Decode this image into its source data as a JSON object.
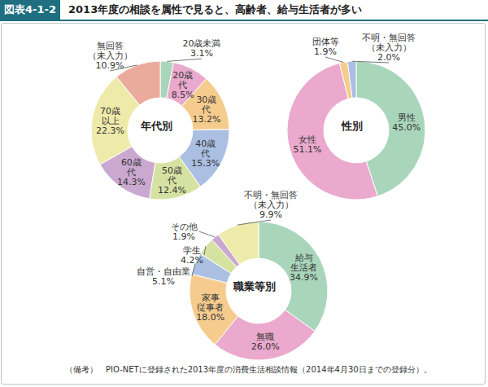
{
  "header": {
    "figure_label": "図表4-1-2",
    "title": "2013年度の相談を属性で見ると、高齢者、給与生活者が多い"
  },
  "note": "（備考）　PIO-NETに登録された2013年度の消費生活相談情報（2014年4月30日までの登録分）。",
  "chart_data": [
    {
      "type": "pie",
      "title": "年代別",
      "categories": [
        "20歳未満",
        "20歳代",
        "30歳代",
        "40歳代",
        "50歳代",
        "60歳代",
        "70歳以上",
        "無回答（未入力）"
      ],
      "values": [
        3.1,
        8.5,
        13.2,
        15.3,
        12.4,
        14.3,
        22.3,
        10.9
      ],
      "value_labels": [
        "3.1%",
        "8.5%",
        "13.2%",
        "15.3%",
        "12.4%",
        "14.3%",
        "22.3%",
        "10.9%"
      ],
      "colors": [
        "#a9d6bb",
        "#eaa9cd",
        "#f6cc8e",
        "#aabfe2",
        "#d6e2a2",
        "#caa8d0",
        "#eeeaa9",
        "#eaaa9c"
      ]
    },
    {
      "type": "pie",
      "title": "性別",
      "categories": [
        "男性",
        "女性",
        "団体等",
        "不明・無回答（未入力）"
      ],
      "values": [
        45.0,
        51.1,
        1.9,
        2.0
      ],
      "value_labels": [
        "45.0%",
        "51.1%",
        "1.9%",
        "2.0%"
      ],
      "colors": [
        "#a9d6bb",
        "#eaa9cd",
        "#f6cc8e",
        "#aabfe2"
      ]
    },
    {
      "type": "pie",
      "title": "職業等別",
      "categories": [
        "給与生活者",
        "無職",
        "家事従事者",
        "自営・自由業",
        "学生",
        "その他",
        "不明・無回答（未入力）"
      ],
      "values": [
        34.9,
        26.0,
        18.0,
        5.1,
        4.2,
        1.9,
        9.9
      ],
      "value_labels": [
        "34.9%",
        "26.0%",
        "18.0%",
        "5.1%",
        "4.2%",
        "1.9%",
        "9.9%"
      ],
      "colors": [
        "#a9d6bb",
        "#eaa9cd",
        "#f6cc8e",
        "#aabfe2",
        "#d6e2a2",
        "#caa8d0",
        "#eeeaa9"
      ]
    }
  ]
}
